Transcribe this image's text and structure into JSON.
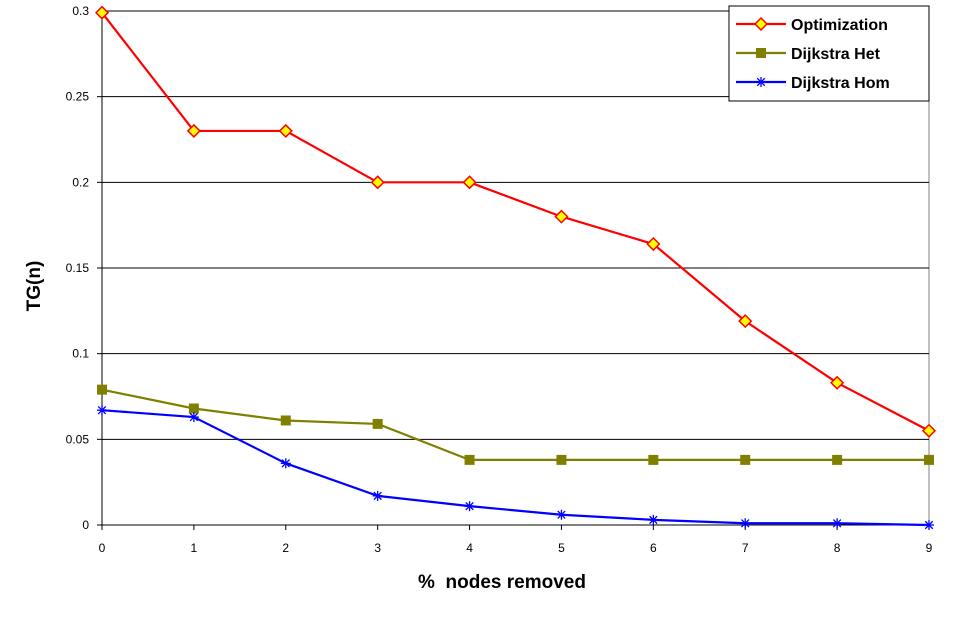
{
  "chart_data": {
    "type": "line",
    "title": "",
    "xlabel": "%  nodes removed",
    "ylabel": "TG(n)",
    "x": [
      0,
      1,
      2,
      3,
      4,
      5,
      6,
      7,
      8,
      9
    ],
    "x_tick_labels": [
      "0",
      "1",
      "2",
      "3",
      "4",
      "5",
      "6",
      "7",
      "8",
      "9"
    ],
    "y_tick_values": [
      0,
      0.05,
      0.1,
      0.15,
      0.2,
      0.25,
      0.3
    ],
    "y_tick_labels": [
      "0",
      "0.05",
      "0.1",
      "0.15",
      "0.2",
      "0.25",
      "0.3"
    ],
    "ylim": [
      0,
      0.3
    ],
    "grid": "horizontal",
    "legend_position": "top-right",
    "series": [
      {
        "name": "Optimization",
        "color": "#ff0000",
        "marker": "diamond",
        "marker_color": "#ffff00",
        "values": [
          0.299,
          0.23,
          0.23,
          0.2,
          0.2,
          0.18,
          0.164,
          0.119,
          0.083,
          0.055
        ]
      },
      {
        "name": "Dijkstra Het",
        "color": "#808000",
        "marker": "square",
        "marker_color": "#808000",
        "values": [
          0.079,
          0.068,
          0.061,
          0.059,
          0.038,
          0.038,
          0.038,
          0.038,
          0.038,
          0.038
        ]
      },
      {
        "name": "Dijkstra Hom",
        "color": "#0000ff",
        "marker": "asterisk",
        "marker_color": "#0000ff",
        "values": [
          0.067,
          0.063,
          0.036,
          0.017,
          0.011,
          0.006,
          0.003,
          0.001,
          0.001,
          0.0
        ]
      }
    ]
  }
}
